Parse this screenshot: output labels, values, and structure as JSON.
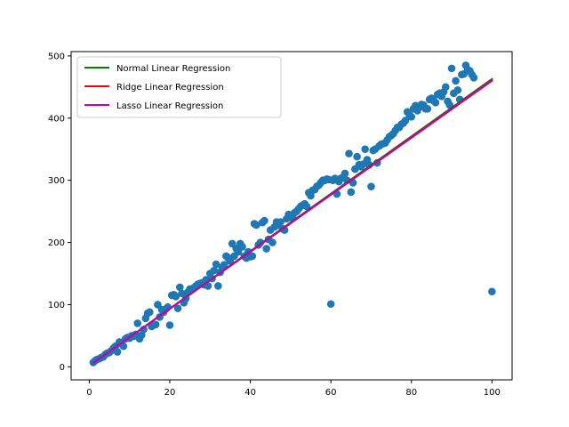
{
  "chart_data": {
    "type": "scatter",
    "title": "",
    "xlabel": "",
    "ylabel": "",
    "xlim": [
      -4.5,
      105
    ],
    "ylim": [
      -21,
      507
    ],
    "x_ticks": [
      0,
      20,
      40,
      60,
      80,
      100
    ],
    "y_ticks": [
      0,
      100,
      200,
      300,
      400,
      500
    ],
    "grid": false,
    "legend_position": "upper-left",
    "colors": {
      "points": "#1f77b4",
      "normal": "#008000",
      "ridge": "#ff0000",
      "lasso": "#bf00bf"
    },
    "series": [
      {
        "kind": "points",
        "color": "#1f77b4",
        "points": [
          [
            1,
            7
          ],
          [
            1.5,
            10
          ],
          [
            2,
            12
          ],
          [
            2.5,
            13
          ],
          [
            3,
            15
          ],
          [
            3.5,
            16
          ],
          [
            4,
            20
          ],
          [
            4.5,
            22
          ],
          [
            5,
            23
          ],
          [
            5.5,
            26
          ],
          [
            6,
            30
          ],
          [
            6.5,
            33
          ],
          [
            7,
            24
          ],
          [
            7.5,
            40
          ],
          [
            8,
            37
          ],
          [
            8.5,
            33
          ],
          [
            9,
            45
          ],
          [
            9.5,
            47
          ],
          [
            10,
            46
          ],
          [
            10.5,
            50
          ],
          [
            11,
            49
          ],
          [
            11.5,
            52
          ],
          [
            12,
            70
          ],
          [
            12.5,
            45
          ],
          [
            13,
            51
          ],
          [
            13.5,
            60
          ],
          [
            14,
            78
          ],
          [
            14.5,
            86
          ],
          [
            15,
            88
          ],
          [
            15.5,
            65
          ],
          [
            16,
            67
          ],
          [
            16.5,
            68
          ],
          [
            17,
            100
          ],
          [
            17.5,
            80
          ],
          [
            18,
            92
          ],
          [
            18.5,
            88
          ],
          [
            19,
            93
          ],
          [
            19.5,
            96
          ],
          [
            20,
            67
          ],
          [
            20.5,
            115
          ],
          [
            21,
            116
          ],
          [
            21.5,
            113
          ],
          [
            22,
            94
          ],
          [
            22.5,
            128
          ],
          [
            23,
            118
          ],
          [
            23.5,
            103
          ],
          [
            24,
            110
          ],
          [
            24.5,
            120
          ],
          [
            25,
            125
          ],
          [
            25.5,
            125
          ],
          [
            26,
            127
          ],
          [
            26.5,
            130
          ],
          [
            27,
            133
          ],
          [
            27.5,
            134
          ],
          [
            28,
            135
          ],
          [
            28.5,
            132
          ],
          [
            29,
            140
          ],
          [
            29.5,
            130
          ],
          [
            30,
            150
          ],
          [
            30.5,
            142
          ],
          [
            31,
            155
          ],
          [
            31.5,
            165
          ],
          [
            32,
            130
          ],
          [
            32.5,
            152
          ],
          [
            33,
            160
          ],
          [
            33.5,
            164
          ],
          [
            34,
            178
          ],
          [
            34.5,
            175
          ],
          [
            35,
            170
          ],
          [
            35.5,
            198
          ],
          [
            36,
            178
          ],
          [
            36.5,
            190
          ],
          [
            37,
            185
          ],
          [
            37.5,
            198
          ],
          [
            38,
            193
          ],
          [
            38.5,
            178
          ],
          [
            39,
            175
          ],
          [
            39.5,
            185
          ],
          [
            40,
            177
          ],
          [
            40.5,
            178
          ],
          [
            41,
            230
          ],
          [
            41.5,
            228
          ],
          [
            42,
            196
          ],
          [
            42.5,
            200
          ],
          [
            43,
            232
          ],
          [
            43.5,
            235
          ],
          [
            44,
            190
          ],
          [
            44.5,
            205
          ],
          [
            45,
            220
          ],
          [
            45.5,
            200
          ],
          [
            46,
            225
          ],
          [
            46.5,
            233
          ],
          [
            47,
            228
          ],
          [
            47.5,
            233
          ],
          [
            48,
            222
          ],
          [
            48.5,
            220
          ],
          [
            49,
            238
          ],
          [
            49.5,
            245
          ],
          [
            50,
            240
          ],
          [
            50.5,
            242
          ],
          [
            51,
            248
          ],
          [
            51.5,
            250
          ],
          [
            52,
            254
          ],
          [
            52.5,
            258
          ],
          [
            53,
            260
          ],
          [
            53.5,
            262
          ],
          [
            54,
            258
          ],
          [
            54.5,
            280
          ],
          [
            55,
            275
          ],
          [
            55.5,
            284
          ],
          [
            56,
            285
          ],
          [
            56.5,
            290
          ],
          [
            57,
            292
          ],
          [
            57.5,
            296
          ],
          [
            58,
            300
          ],
          [
            58.5,
            300
          ],
          [
            59,
            302
          ],
          [
            59.5,
            301
          ],
          [
            60,
            101
          ],
          [
            60.5,
            300
          ],
          [
            61,
            303
          ],
          [
            61.5,
            278
          ],
          [
            62,
            298
          ],
          [
            62.5,
            303
          ],
          [
            63,
            305
          ],
          [
            63.5,
            311
          ],
          [
            64,
            300
          ],
          [
            64.5,
            343
          ],
          [
            65,
            281
          ],
          [
            65.5,
            296
          ],
          [
            66,
            318
          ],
          [
            66.5,
            338
          ],
          [
            67,
            325
          ],
          [
            67.5,
            322
          ],
          [
            68,
            326
          ],
          [
            68.5,
            350
          ],
          [
            69,
            333
          ],
          [
            69.5,
            325
          ],
          [
            70,
            290
          ],
          [
            70.5,
            348
          ],
          [
            71,
            350
          ],
          [
            71.5,
            328
          ],
          [
            72,
            355
          ],
          [
            72.5,
            358
          ],
          [
            73,
            359
          ],
          [
            73.5,
            360
          ],
          [
            74,
            365
          ],
          [
            74.5,
            370
          ],
          [
            75,
            372
          ],
          [
            75.5,
            375
          ],
          [
            76,
            380
          ],
          [
            76.5,
            385
          ],
          [
            77,
            385
          ],
          [
            77.5,
            390
          ],
          [
            78,
            392
          ],
          [
            78.5,
            396
          ],
          [
            79,
            410
          ],
          [
            79.5,
            405
          ],
          [
            80,
            402
          ],
          [
            80.5,
            415
          ],
          [
            81,
            420
          ],
          [
            81.5,
            412
          ],
          [
            82,
            418
          ],
          [
            82.5,
            422
          ],
          [
            83,
            421
          ],
          [
            83.5,
            415
          ],
          [
            84,
            415
          ],
          [
            84.5,
            430
          ],
          [
            85,
            432
          ],
          [
            85.5,
            428
          ],
          [
            86,
            425
          ],
          [
            86.5,
            438
          ],
          [
            87,
            440
          ],
          [
            87.5,
            435
          ],
          [
            88,
            442
          ],
          [
            88.5,
            450
          ],
          [
            89,
            427
          ],
          [
            89.5,
            421
          ],
          [
            90,
            480
          ],
          [
            90.5,
            440
          ],
          [
            91,
            460
          ],
          [
            91.5,
            445
          ],
          [
            92,
            430
          ],
          [
            92.5,
            470
          ],
          [
            93,
            471
          ],
          [
            93.5,
            485
          ],
          [
            94,
            478
          ],
          [
            94.5,
            476
          ],
          [
            95,
            470
          ],
          [
            95.5,
            465
          ],
          [
            100,
            121
          ]
        ]
      },
      {
        "kind": "line",
        "name": "Normal Linear Regression",
        "color": "#008000",
        "points": [
          [
            1,
            6
          ],
          [
            100,
            463
          ]
        ]
      },
      {
        "kind": "line",
        "name": "Ridge Linear Regression",
        "color": "#ff0000",
        "points": [
          [
            1,
            6
          ],
          [
            100,
            461
          ]
        ]
      },
      {
        "kind": "line",
        "name": "Lasso Linear Regression",
        "color": "#bf00bf",
        "points": [
          [
            1,
            6
          ],
          [
            100,
            460
          ]
        ]
      }
    ]
  }
}
